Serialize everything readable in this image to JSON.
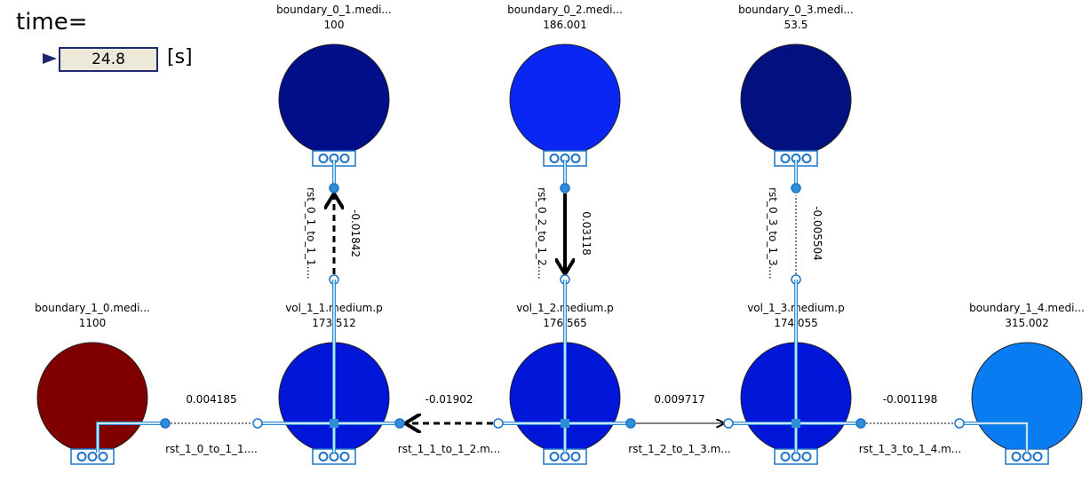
{
  "time": {
    "label": "time=",
    "value": "24.8",
    "unit": "[s]"
  },
  "colors": {
    "wire": "#2E8FD6",
    "port_stroke": "#1C72C8",
    "arrow": "#000000"
  },
  "nodes": [
    {
      "id": "boundary_0_1",
      "title": "boundary_0_1.medi...",
      "value": "100",
      "color": "#000E8A"
    },
    {
      "id": "boundary_0_2",
      "title": "boundary_0_2.medi...",
      "value": "186.001",
      "color": "#0A26F2"
    },
    {
      "id": "boundary_0_3",
      "title": "boundary_0_3.medi...",
      "value": "53.5",
      "color": "#021080"
    },
    {
      "id": "boundary_1_0",
      "title": "boundary_1_0.medi...",
      "value": "1100",
      "color": "#800000"
    },
    {
      "id": "vol_1_1",
      "title": "vol_1_1.medium.p",
      "value": "173.512",
      "color": "#0016D8"
    },
    {
      "id": "vol_1_2",
      "title": "vol_1_2.medium.p",
      "value": "176.565",
      "color": "#0016D8"
    },
    {
      "id": "vol_1_3",
      "title": "vol_1_3.medium.p",
      "value": "174.055",
      "color": "#0016D8"
    },
    {
      "id": "boundary_1_4",
      "title": "boundary_1_4.medi...",
      "value": "315.002",
      "color": "#0A7CF2"
    }
  ],
  "links": [
    {
      "id": "rst_0_1",
      "name": "rst_0_1_to_1_1....",
      "value": "-0.01842"
    },
    {
      "id": "rst_0_2",
      "name": "rst_0_2_to_1_2....",
      "value": "0.03118"
    },
    {
      "id": "rst_0_3",
      "name": "rst_0_3_to_1_3....",
      "value": "-0.005504"
    },
    {
      "id": "rst_1_0",
      "name": "rst_1_0_to_1_1....",
      "value": "0.004185"
    },
    {
      "id": "rst_1_1",
      "name": "rst_1_1_to_1_2.m...",
      "value": "-0.01902"
    },
    {
      "id": "rst_1_2",
      "name": "rst_1_2_to_1_3.m...",
      "value": "0.009717"
    },
    {
      "id": "rst_1_3",
      "name": "rst_1_3_to_1_4.m...",
      "value": "-0.001198"
    }
  ]
}
